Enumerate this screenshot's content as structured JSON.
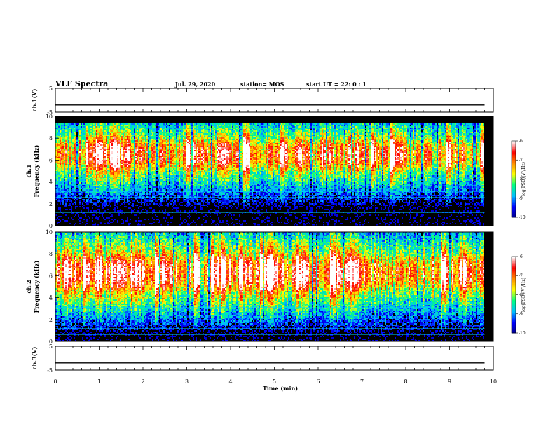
{
  "header": {
    "title": "VLF Spectra",
    "date": "Jul. 29, 2020",
    "station": "station= MOS",
    "start_time": "start UT = 22: 0 : 1"
  },
  "colors": {
    "background": "#000000",
    "colormap": [
      "#00008b",
      "#0000ff",
      "#00bfff",
      "#00ff80",
      "#ffff00",
      "#ff8c00",
      "#ff0000",
      "#ffffff"
    ]
  },
  "chart_data": [
    {
      "type": "line",
      "panel": "ch1_voltage",
      "ylabel": "ch.1(V)",
      "ylim": [
        -5,
        5
      ],
      "yticks": [
        "5",
        "-5"
      ],
      "x": [
        0,
        9.8
      ],
      "values": [
        -2,
        -2
      ]
    },
    {
      "type": "heatmap",
      "panel": "ch1_spectrogram",
      "ylabel": "ch.1 Frequency (kHz)",
      "ylim": [
        0,
        10
      ],
      "yticks": [
        "0",
        "2",
        "4",
        "6",
        "8",
        "10"
      ],
      "xlim": [
        0,
        10
      ],
      "data_extent_min": 9.8,
      "band_low_khz": 0.5,
      "band_high_khz": 9.3,
      "peak_band_khz": [
        5,
        8
      ],
      "colorbar": {
        "label": "log(PSD)(V²/Hz)",
        "ticks": [
          "-6",
          "-7",
          "-8",
          "-9",
          "-10"
        ],
        "range": [
          -10,
          -6
        ]
      }
    },
    {
      "type": "heatmap",
      "panel": "ch2_spectrogram",
      "ylabel": "ch.2 Frequency (kHz)",
      "ylim": [
        0,
        10
      ],
      "yticks": [
        "0",
        "2",
        "4",
        "6",
        "8",
        "10"
      ],
      "xlim": [
        0,
        10
      ],
      "data_extent_min": 9.8,
      "band_low_khz": 0.5,
      "band_high_khz": 10,
      "peak_band_khz": [
        4.5,
        8
      ],
      "colorbar": {
        "label": "log(PSD)(V²/Hz)",
        "ticks": [
          "-6",
          "-7",
          "-8",
          "-9",
          "-10"
        ],
        "range": [
          -10,
          -6
        ]
      }
    },
    {
      "type": "line",
      "panel": "ch3_voltage",
      "ylabel": "ch.3(V)",
      "ylim": [
        -5,
        5
      ],
      "yticks": [
        "5",
        "-5"
      ],
      "x": [
        0,
        9.8
      ],
      "values": [
        -2,
        -2
      ]
    }
  ],
  "xaxis": {
    "label": "Time (min)",
    "ticks": [
      "0",
      "1",
      "2",
      "3",
      "4",
      "5",
      "6",
      "7",
      "8",
      "9",
      "10"
    ]
  }
}
